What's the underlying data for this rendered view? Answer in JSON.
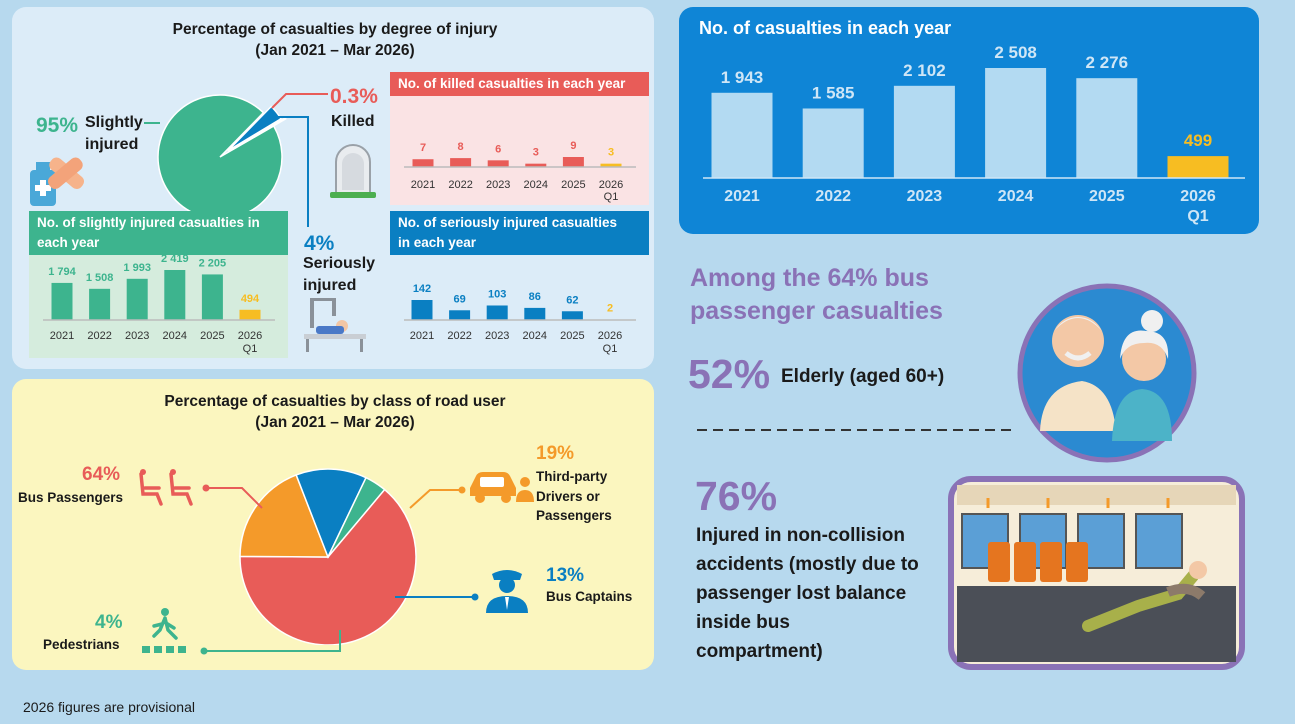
{
  "injury_panel": {
    "title_line1": "Percentage of casualties by degree of injury",
    "title_line2": "(Jan 2021 – Mar 2026)",
    "slight": {
      "pct": "95%",
      "label1": "Slightly",
      "label2": "injured"
    },
    "killed": {
      "pct": "0.3%",
      "label": "Killed"
    },
    "serious": {
      "pct": "4%",
      "label1": "Seriously",
      "label2": "injured"
    }
  },
  "road_user_panel": {
    "title_line1": "Percentage of casualties by class of road user",
    "title_line2": "(Jan 2021 – Mar 2026)",
    "bus_passengers": {
      "pct": "64%",
      "label": "Bus Passengers"
    },
    "third_party": {
      "pct": "19%",
      "label1": "Third-party",
      "label2": "Drivers or",
      "label3": "Passengers"
    },
    "bus_captains": {
      "pct": "13%",
      "label": "Bus Captains"
    },
    "pedestrians": {
      "pct": "4%",
      "label": "Pedestrians"
    }
  },
  "elderly_panel": {
    "heading1": "Among the 64% bus",
    "heading2": "passenger casualties",
    "elderly_pct": "52%",
    "elderly_label": "Elderly (aged 60+)",
    "noncollision_pct": "76%",
    "noncollision_line1": "Injured in non-collision",
    "noncollision_line2": "accidents (mostly due to",
    "noncollision_line3": "passenger lost balance",
    "noncollision_line4": "inside bus",
    "noncollision_line5": "compartment)"
  },
  "footnote": "2026 figures are provisional",
  "colors": {
    "green": "#3db48e",
    "blue": "#0a7fc2",
    "red": "#e85c58",
    "orange": "#f49a2a",
    "gold": "#f7bd22",
    "purple": "#8a72b6",
    "navy_bar": "#0f85d6"
  },
  "chart_data": [
    {
      "id": "annual",
      "type": "bar",
      "title": "No. of casualties in each year",
      "categories": [
        "2021",
        "2022",
        "2023",
        "2024",
        "2025",
        "2026"
      ],
      "category_sub": [
        "",
        "",
        "",
        "",
        "",
        "Q1"
      ],
      "values": [
        1943,
        1585,
        2102,
        2508,
        2276,
        499
      ],
      "value_labels": [
        "1 943",
        "1 585",
        "2 102",
        "2 508",
        "2 276",
        "499"
      ],
      "ylim": [
        0,
        2508
      ]
    },
    {
      "id": "killed",
      "type": "bar",
      "title": "No. of killed casualties in each year",
      "categories": [
        "2021",
        "2022",
        "2023",
        "2024",
        "2025",
        "2026"
      ],
      "category_sub": [
        "",
        "",
        "",
        "",
        "",
        "Q1"
      ],
      "values": [
        7,
        8,
        6,
        3,
        9,
        3
      ],
      "value_labels": [
        "7",
        "8",
        "6",
        "3",
        "9",
        "3"
      ],
      "ylim": [
        0,
        9
      ]
    },
    {
      "id": "slight",
      "type": "bar",
      "title_line1": "No. of slightly injured casualties in",
      "title_line2": "each year",
      "categories": [
        "2021",
        "2022",
        "2023",
        "2024",
        "2025",
        "2026"
      ],
      "category_sub": [
        "",
        "",
        "",
        "",
        "",
        "Q1"
      ],
      "values": [
        1794,
        1508,
        1993,
        2419,
        2205,
        494
      ],
      "value_labels": [
        "1 794",
        "1 508",
        "1 993",
        "2 419",
        "2 205",
        "494"
      ],
      "ylim": [
        0,
        2419
      ]
    },
    {
      "id": "serious",
      "type": "bar",
      "title_line1": "No. of seriously injured casualties",
      "title_line2": "in each year",
      "categories": [
        "2021",
        "2022",
        "2023",
        "2024",
        "2025",
        "2026"
      ],
      "category_sub": [
        "",
        "",
        "",
        "",
        "",
        "Q1"
      ],
      "values": [
        142,
        69,
        103,
        86,
        62,
        2
      ],
      "value_labels": [
        "142",
        "69",
        "103",
        "86",
        "62",
        "2"
      ],
      "ylim": [
        0,
        142
      ]
    },
    {
      "id": "injury_pie",
      "type": "pie",
      "labels": [
        "Slightly injured",
        "Seriously injured",
        "Killed"
      ],
      "values": [
        95,
        4,
        0.3
      ]
    },
    {
      "id": "road_user_pie",
      "type": "pie",
      "labels": [
        "Bus Passengers",
        "Third-party Drivers or Passengers",
        "Bus Captains",
        "Pedestrians"
      ],
      "values": [
        64,
        19,
        13,
        4
      ]
    }
  ]
}
